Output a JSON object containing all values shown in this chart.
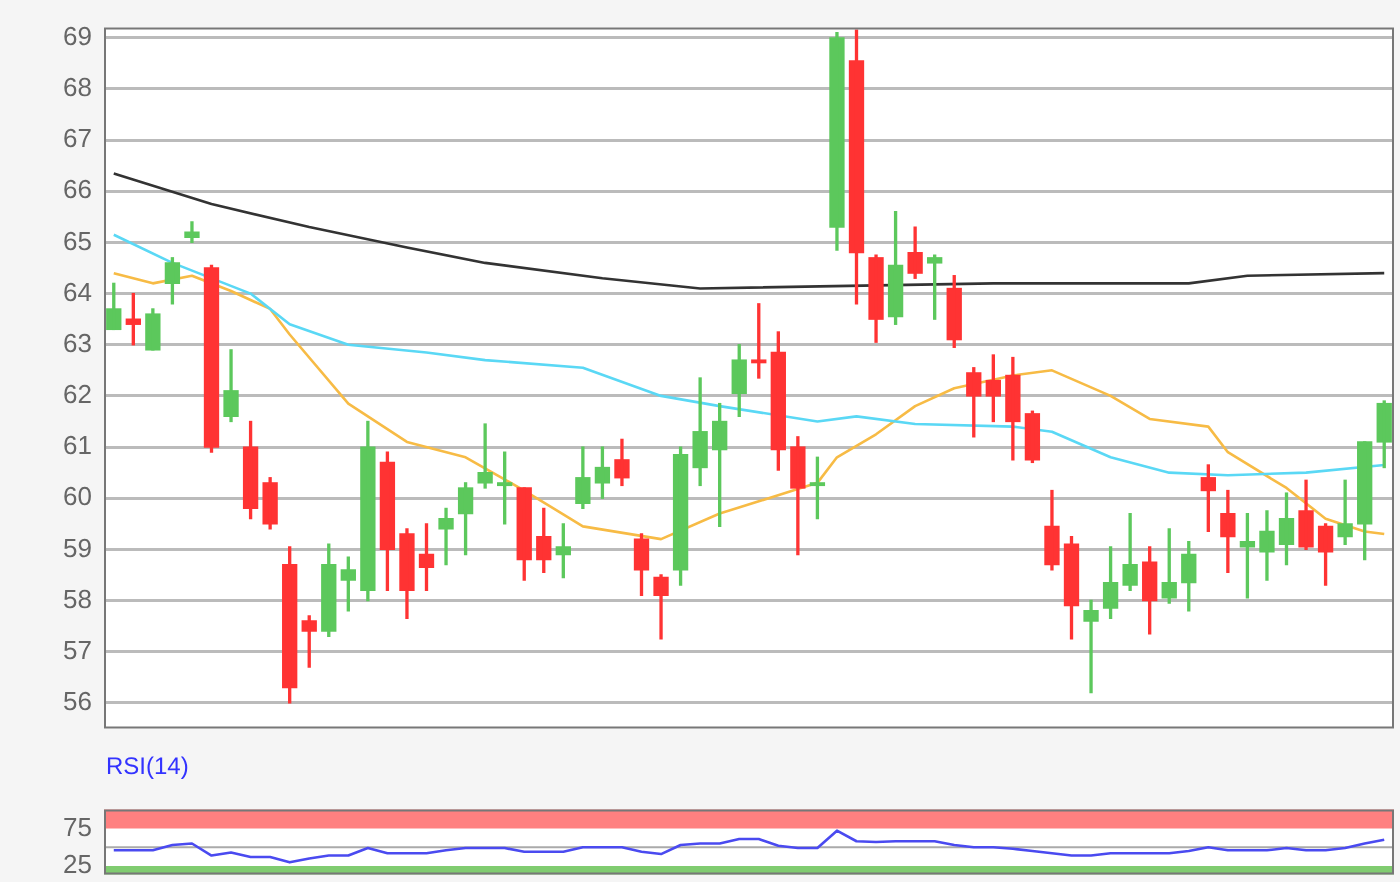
{
  "chart_data": [
    {
      "type": "candlestick",
      "categories": [
        null,
        null,
        null,
        null,
        null,
        null,
        null,
        null,
        null,
        null,
        null,
        null,
        null,
        null,
        null,
        null,
        null,
        null,
        null,
        null,
        null,
        null,
        null,
        null,
        null,
        null,
        null,
        null,
        null,
        null,
        null,
        null,
        null,
        null,
        null,
        null,
        null,
        null,
        null,
        null,
        null,
        null,
        null,
        null,
        null,
        null,
        null,
        null,
        null,
        null,
        null,
        null,
        null,
        null,
        null,
        null,
        null,
        null,
        null,
        null,
        null,
        null,
        null,
        null,
        null,
        null
      ],
      "ohlc": [
        [
          63.3,
          64.2,
          63.3,
          63.7
        ],
        [
          63.5,
          64.0,
          63.0,
          63.4
        ],
        [
          62.9,
          63.7,
          62.9,
          63.6
        ],
        [
          64.2,
          64.7,
          63.8,
          64.6
        ],
        [
          65.1,
          65.4,
          65.0,
          65.2
        ],
        [
          64.5,
          64.55,
          60.9,
          61.0
        ],
        [
          61.6,
          62.9,
          61.5,
          62.1
        ],
        [
          61.0,
          61.5,
          59.6,
          59.8
        ],
        [
          60.3,
          60.4,
          59.4,
          59.5
        ],
        [
          58.7,
          59.05,
          56.0,
          56.3
        ],
        [
          57.6,
          57.7,
          56.7,
          57.4
        ],
        [
          57.4,
          59.1,
          57.3,
          58.7
        ],
        [
          58.4,
          58.85,
          57.8,
          58.6
        ],
        [
          58.2,
          61.5,
          58.0,
          61.0
        ],
        [
          60.7,
          60.9,
          58.2,
          59.0
        ],
        [
          59.3,
          59.4,
          57.65,
          58.2
        ],
        [
          58.9,
          59.5,
          58.2,
          58.65
        ],
        [
          59.4,
          59.8,
          58.7,
          59.6
        ],
        [
          59.7,
          60.3,
          58.9,
          60.2
        ],
        [
          60.3,
          61.45,
          60.2,
          60.5
        ],
        [
          60.25,
          60.9,
          59.5,
          60.3
        ],
        [
          60.2,
          60.2,
          58.4,
          58.8
        ],
        [
          59.25,
          59.8,
          58.55,
          58.8
        ],
        [
          58.9,
          59.5,
          58.45,
          59.05
        ],
        [
          59.9,
          61.0,
          59.8,
          60.4
        ],
        [
          60.3,
          61.0,
          60.0,
          60.6
        ],
        [
          60.75,
          61.15,
          60.25,
          60.4
        ],
        [
          59.2,
          59.3,
          58.1,
          58.6
        ],
        [
          58.45,
          58.5,
          57.25,
          58.1
        ],
        [
          58.6,
          61.0,
          58.3,
          60.85
        ],
        [
          60.6,
          62.35,
          60.25,
          61.3
        ],
        [
          60.95,
          61.85,
          59.45,
          61.5
        ],
        [
          62.05,
          63.0,
          61.6,
          62.7
        ],
        [
          62.7,
          63.8,
          62.35,
          62.65
        ],
        [
          62.85,
          63.25,
          60.55,
          60.95
        ],
        [
          61.0,
          61.2,
          58.9,
          60.2
        ],
        [
          60.25,
          60.8,
          59.6,
          60.3
        ],
        [
          65.3,
          69.1,
          64.85,
          69.0
        ],
        [
          68.55,
          69.15,
          63.8,
          64.8
        ],
        [
          64.7,
          64.75,
          63.05,
          63.5
        ],
        [
          63.55,
          65.6,
          63.4,
          64.55
        ],
        [
          64.8,
          65.3,
          64.3,
          64.4
        ],
        [
          64.6,
          64.75,
          63.5,
          64.7
        ],
        [
          64.1,
          64.35,
          62.95,
          63.1
        ],
        [
          62.45,
          62.55,
          61.2,
          62.0
        ],
        [
          62.3,
          62.8,
          61.5,
          62.0
        ],
        [
          62.4,
          62.75,
          60.75,
          61.5
        ],
        [
          61.65,
          61.7,
          60.7,
          60.75
        ],
        [
          59.45,
          60.15,
          58.6,
          58.7
        ],
        [
          59.1,
          59.25,
          57.25,
          57.9
        ],
        [
          57.6,
          58.0,
          56.2,
          57.8
        ],
        [
          57.85,
          59.05,
          57.65,
          58.35
        ],
        [
          58.3,
          59.7,
          58.2,
          58.7
        ],
        [
          58.75,
          59.05,
          57.35,
          58.0
        ],
        [
          58.05,
          59.4,
          57.95,
          58.35
        ],
        [
          58.35,
          59.15,
          57.8,
          58.9
        ],
        [
          60.4,
          60.65,
          59.35,
          60.15
        ],
        [
          59.7,
          60.15,
          58.55,
          59.25
        ],
        [
          59.05,
          59.7,
          58.05,
          59.15
        ],
        [
          58.95,
          59.75,
          58.4,
          59.35
        ],
        [
          59.1,
          60.1,
          58.7,
          59.6
        ],
        [
          59.75,
          60.35,
          59.0,
          59.05
        ],
        [
          59.45,
          59.5,
          58.3,
          58.95
        ],
        [
          59.25,
          60.35,
          59.1,
          59.5
        ],
        [
          59.5,
          61.1,
          58.8,
          61.1
        ],
        [
          61.1,
          61.9,
          60.6,
          61.85
        ]
      ],
      "series": [
        {
          "type": "line",
          "color": "#333333",
          "values": [
            66.35,
            null,
            null,
            null,
            null,
            65.75,
            null,
            null,
            null,
            null,
            65.3,
            null,
            null,
            null,
            null,
            64.9,
            null,
            null,
            null,
            64.6,
            null,
            null,
            null,
            null,
            null,
            64.3,
            null,
            null,
            null,
            null,
            64.1,
            null,
            null,
            null,
            null,
            null,
            null,
            null,
            null,
            null,
            null,
            null,
            null,
            null,
            null,
            64.2,
            null,
            null,
            null,
            null,
            null,
            null,
            null,
            null,
            null,
            64.2,
            null,
            null,
            64.35,
            null,
            null,
            null,
            null,
            null,
            null,
            64.4
          ]
        },
        {
          "type": "line",
          "color": "#5ad8f5",
          "values": [
            65.15,
            null,
            null,
            64.6,
            null,
            null,
            null,
            64.0,
            null,
            63.4,
            null,
            null,
            63.0,
            null,
            null,
            null,
            62.85,
            null,
            null,
            62.7,
            null,
            null,
            null,
            null,
            62.55,
            null,
            null,
            null,
            62.0,
            null,
            null,
            61.8,
            null,
            null,
            null,
            null,
            61.5,
            null,
            61.6,
            null,
            null,
            61.45,
            null,
            null,
            null,
            null,
            61.4,
            null,
            61.3,
            null,
            null,
            60.8,
            null,
            null,
            60.5,
            null,
            null,
            60.45,
            null,
            null,
            null,
            60.5,
            null,
            null,
            null,
            60.65
          ]
        },
        {
          "type": "line",
          "color": "#f7bb45",
          "values": [
            64.4,
            null,
            64.2,
            null,
            64.35,
            null,
            64.05,
            null,
            63.7,
            63.2,
            null,
            null,
            61.85,
            null,
            null,
            61.1,
            null,
            null,
            60.8,
            null,
            null,
            60.15,
            null,
            null,
            59.45,
            null,
            null,
            null,
            59.2,
            null,
            null,
            59.7,
            null,
            null,
            null,
            null,
            60.3,
            60.8,
            null,
            61.25,
            null,
            61.8,
            null,
            62.15,
            null,
            null,
            62.4,
            null,
            62.5,
            null,
            null,
            62.0,
            null,
            61.55,
            null,
            null,
            61.4,
            60.9,
            null,
            null,
            60.2,
            null,
            59.6,
            null,
            59.35,
            59.3
          ]
        }
      ],
      "ylim": [
        55.5,
        69.2
      ],
      "yticks": [
        56,
        57,
        58,
        59,
        60,
        61,
        62,
        63,
        64,
        65,
        66,
        67,
        68,
        69
      ],
      "grid": "y",
      "tick_labels": "y",
      "marker": "none"
    },
    {
      "type": "line",
      "title": "RSI(14)",
      "categories": [
        null,
        null,
        null,
        null,
        null,
        null,
        null,
        null,
        null,
        null,
        null,
        null,
        null,
        null,
        null,
        null,
        null,
        null,
        null,
        null,
        null,
        null,
        null,
        null,
        null,
        null,
        null,
        null,
        null,
        null,
        null,
        null,
        null,
        null,
        null,
        null,
        null,
        null,
        null,
        null,
        null,
        null,
        null,
        null,
        null,
        null,
        null,
        null,
        null,
        null,
        null,
        null,
        null,
        null,
        null,
        null,
        null,
        null,
        null,
        null,
        null,
        null,
        null,
        null,
        null,
        null
      ],
      "series": [
        {
          "color": "#4a4af0",
          "values": [
            46,
            null,
            46,
            53,
            55,
            39,
            43,
            37,
            37,
            30,
            35,
            39,
            39,
            49,
            42,
            null,
            42,
            46,
            49,
            null,
            49,
            44,
            null,
            44,
            50,
            null,
            50,
            44,
            41,
            53,
            55,
            55,
            61,
            61,
            52,
            49,
            49,
            72,
            58,
            57,
            58,
            null,
            58,
            53,
            50,
            50,
            48,
            45,
            42,
            39,
            39,
            42,
            null,
            42,
            42,
            45,
            50,
            46,
            null,
            46,
            49,
            46,
            46,
            49,
            55,
            60
          ]
        }
      ],
      "ylim": [
        14,
        100
      ],
      "yticks": [
        25,
        75
      ],
      "tick_labels": "y",
      "marker": "none",
      "bands": [
        {
          "axis": "y",
          "from": 75,
          "to": 100,
          "color": "#ff8080"
        },
        {
          "axis": "y",
          "from": 14,
          "to": 25,
          "color": "#80cc70"
        }
      ],
      "ref_lines": [
        {
          "axis": "y",
          "value": 50,
          "color": "#aaaaaa"
        }
      ]
    }
  ]
}
